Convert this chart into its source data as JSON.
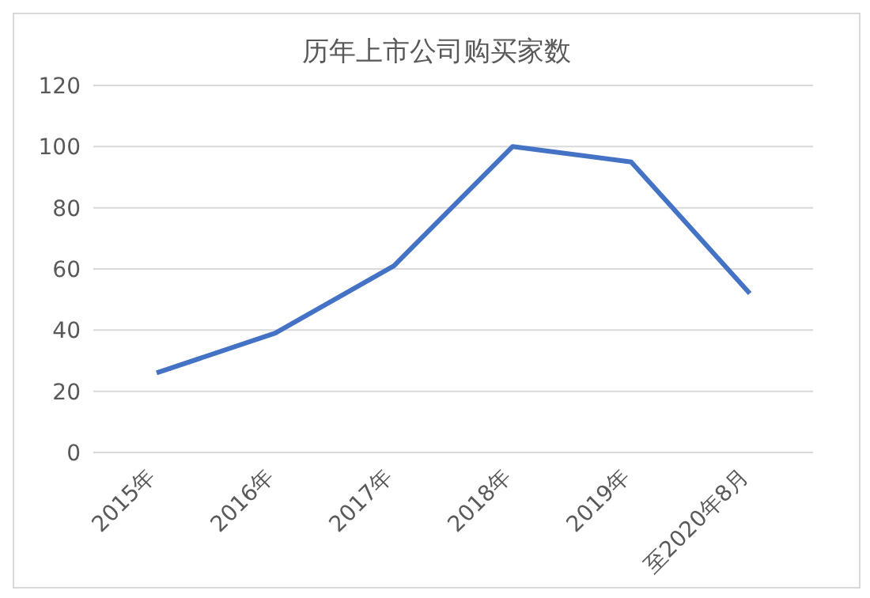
{
  "chart_data": {
    "type": "line",
    "title": "历年上市公司购买家数",
    "categories": [
      "2015年",
      "2016年",
      "2017年",
      "2018年",
      "2019年",
      "至2020年8月"
    ],
    "series": [
      {
        "color": "#4472c4",
        "values": [
          26,
          39,
          61,
          100,
          95,
          52
        ]
      }
    ],
    "ylim": [
      0,
      120
    ],
    "yticks": [
      0,
      20,
      40,
      60,
      80,
      100,
      120
    ],
    "grid": "y",
    "legend": false,
    "marker": "none",
    "line_style": "solid"
  }
}
